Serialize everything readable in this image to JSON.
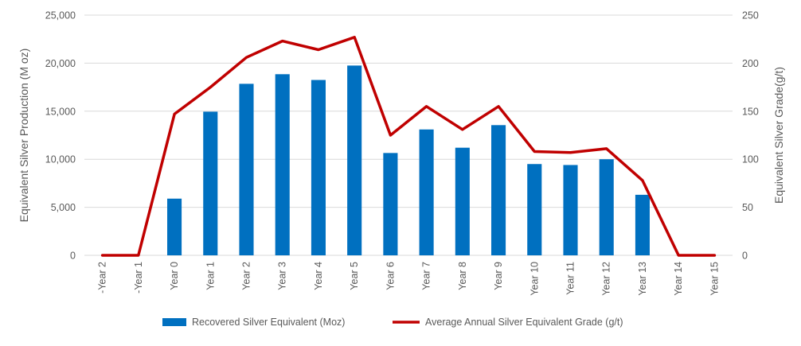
{
  "chart_data": {
    "type": "bar",
    "categories": [
      "-Year 2",
      "-Year 1",
      "Year 0",
      "Year 1",
      "Year 2",
      "Year 3",
      "Year 4",
      "Year 5",
      "Year 6",
      "Year 7",
      "Year 8",
      "Year 9",
      "Year 10",
      "Year 11",
      "Year 12",
      "Year 13",
      "Year 14",
      "Year 15"
    ],
    "series": [
      {
        "name": "Recovered Silver Equivalent (Moz)",
        "type": "bar",
        "axis": "left",
        "color": "#0070C0",
        "values": [
          0,
          0,
          5900,
          14950,
          17850,
          18850,
          18250,
          19750,
          10650,
          13100,
          11200,
          13550,
          9500,
          9400,
          10000,
          6300,
          0,
          0
        ]
      },
      {
        "name": "Average Annual Silver Equivalent Grade (g/t)",
        "type": "line",
        "axis": "right",
        "color": "#C00000",
        "values": [
          0,
          0,
          147,
          175,
          206,
          223,
          214,
          227,
          125,
          155,
          131,
          155,
          108,
          107,
          111,
          78,
          0,
          0
        ]
      }
    ],
    "ylabel": "Equivalent Silver Production (M oz)",
    "y2label": "Equivalent Silver Grade(g/t)",
    "xlabel": "",
    "ylim": [
      0,
      25000
    ],
    "y2lim": [
      0,
      250
    ],
    "yticks": [
      "0",
      "5,000",
      "10,000",
      "15,000",
      "20,000",
      "25,000"
    ],
    "y2ticks": [
      "0",
      "50",
      "100",
      "150",
      "200",
      "250"
    ],
    "grid": true,
    "legend_position": "bottom"
  }
}
